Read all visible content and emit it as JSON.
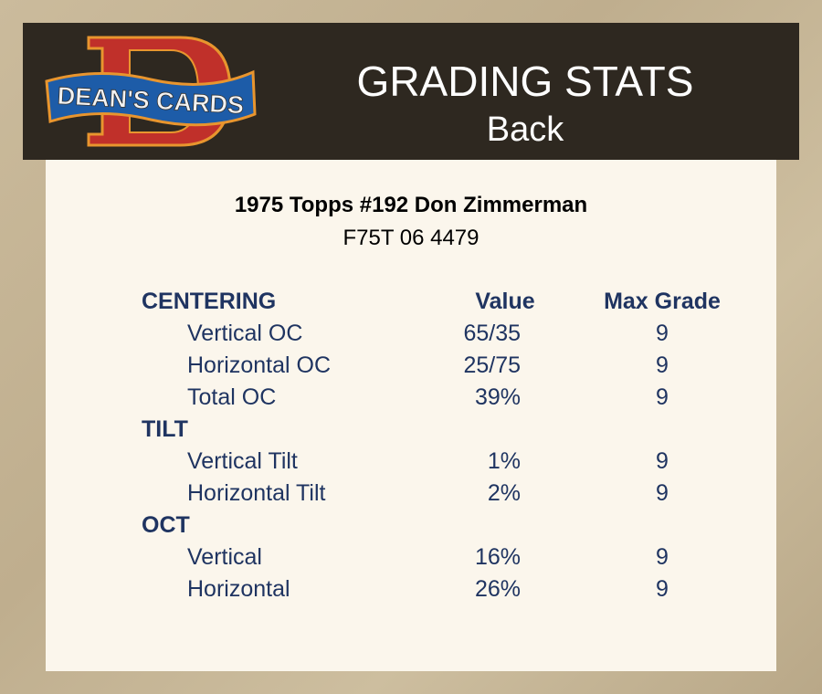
{
  "header": {
    "logo_text": "DEAN'S CARDS",
    "title": "GRADING STATS",
    "subtitle": "Back",
    "colors": {
      "header_bg": "#2e2820",
      "logo_red": "#c0302a",
      "logo_blue": "#1d5ca8",
      "logo_orange": "#e8952e"
    }
  },
  "card": {
    "title": "1975 Topps #192 Don Zimmerman",
    "id": "F75T 06 4479"
  },
  "table": {
    "columns": {
      "value": "Value",
      "max_grade": "Max Grade"
    },
    "sections": [
      {
        "name": "CENTERING",
        "rows": [
          {
            "label": "Vertical OC",
            "value": "65/35",
            "max": "9"
          },
          {
            "label": "Horizontal OC",
            "value": "25/75",
            "max": "9"
          },
          {
            "label": "Total OC",
            "value": "39%",
            "max": "9"
          }
        ]
      },
      {
        "name": "TILT",
        "rows": [
          {
            "label": "Vertical Tilt",
            "value": "1%",
            "max": "9"
          },
          {
            "label": "Horizontal Tilt",
            "value": "2%",
            "max": "9"
          }
        ]
      },
      {
        "name": "OCT",
        "rows": [
          {
            "label": "Vertical",
            "value": "16%",
            "max": "9"
          },
          {
            "label": "Horizontal",
            "value": "26%",
            "max": "9"
          }
        ]
      }
    ]
  }
}
